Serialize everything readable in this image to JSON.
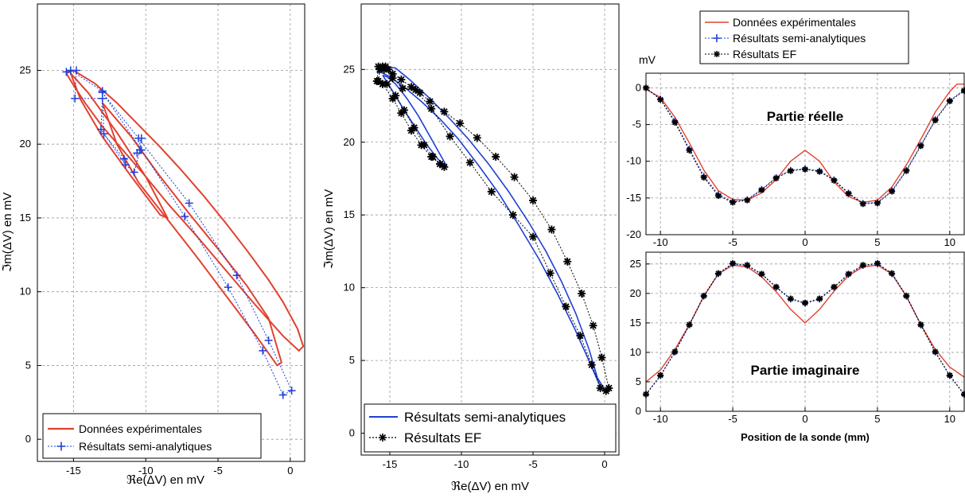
{
  "colors": {
    "experimental": "#e2412f",
    "semi_analytic": "#1f3fd6",
    "ef": "#000000",
    "grid": "#9a9a9a"
  },
  "chart_data": [
    {
      "type": "line",
      "xlabel": "ℜe(ΔV) en mV",
      "ylabel": "ℑm(ΔV) en mV",
      "xlim": [
        -17.5,
        1
      ],
      "ylim": [
        -1.5,
        29.5
      ],
      "xticks": [
        -15,
        -10,
        -5,
        0
      ],
      "yticks": [
        0,
        5,
        10,
        15,
        20,
        25
      ],
      "grid": true,
      "legend_position": "bottom-left",
      "series": [
        {
          "name": "Données expérimentales",
          "style": "solid",
          "x": [
            -15.5,
            -15.0,
            -13.5,
            -12.0,
            -10.5,
            -9.0,
            -7.5,
            -6.0,
            -4.5,
            -3.0,
            -1.5,
            -0.5,
            0.5,
            0.9,
            0.6,
            -0.5,
            -2.5,
            -4.5,
            -6.5,
            -8.5,
            -10.0,
            -11.5,
            -13.0,
            -14.2,
            -15.0,
            -15.5
          ],
          "y": [
            24.8,
            25.0,
            24.1,
            22.8,
            21.3,
            19.8,
            18.2,
            16.5,
            14.7,
            12.8,
            10.8,
            9.3,
            7.5,
            6.3,
            6.0,
            7.0,
            9.2,
            11.5,
            13.8,
            16.0,
            17.8,
            19.5,
            21.2,
            22.8,
            24.0,
            24.8
          ]
        },
        {
          "name": "Données expérimentales",
          "style": "solid",
          "x": [
            -15.2,
            -14.0,
            -12.0,
            -10.0,
            -8.5,
            -9.0,
            -11.0,
            -13.0,
            -14.5,
            -15.2
          ],
          "y": [
            24.8,
            23.5,
            20.8,
            17.8,
            15.0,
            15.2,
            17.8,
            20.5,
            23.0,
            24.8
          ]
        },
        {
          "name": "Données expérimentales",
          "style": "solid",
          "x": [
            -13.0,
            -11.0,
            -9.0,
            -7.0,
            -5.0,
            -3.0,
            -1.5,
            -0.6,
            -0.9,
            -2.5,
            -4.5,
            -6.5,
            -8.5,
            -10.5,
            -12.0,
            -13.0
          ],
          "y": [
            22.8,
            20.5,
            17.8,
            15.3,
            12.9,
            10.4,
            8.2,
            5.2,
            5.0,
            7.2,
            9.8,
            12.4,
            14.9,
            17.4,
            20.0,
            22.8
          ]
        },
        {
          "name": "Résultats semi-analytiques",
          "style": "dotted-plus",
          "x": [
            -15.5,
            -15.2,
            -14.8,
            -14.9,
            -13.0,
            -13.1,
            -11.4,
            -10.8,
            -10.4,
            -10.3,
            -10.6,
            -11.5,
            -12.9,
            -13.0,
            -15.2
          ],
          "y": [
            24.9,
            25.0,
            25.0,
            23.1,
            23.1,
            21.0,
            18.6,
            18.1,
            19.6,
            20.4,
            19.4,
            19.0,
            20.7,
            23.6,
            25.0
          ]
        },
        {
          "name": "Résultats semi-analytiques",
          "style": "dotted-plus",
          "x": [
            -13.0,
            -10.3,
            -7.3,
            -4.3,
            -1.9,
            -0.5,
            0.1,
            -1.5,
            -3.7,
            -7.0,
            -10.5,
            -13.0
          ],
          "y": [
            23.5,
            19.6,
            15.1,
            10.3,
            6.0,
            3.0,
            3.3,
            6.7,
            11.1,
            16.0,
            20.4,
            23.5
          ]
        }
      ]
    },
    {
      "type": "line",
      "xlabel": "ℜe(ΔV) en mV",
      "ylabel": "ℑm(ΔV) en mV",
      "xlim": [
        -17,
        1
      ],
      "ylim": [
        -1.5,
        29.5
      ],
      "xticks": [
        -15,
        -10,
        -5,
        0
      ],
      "yticks": [
        0,
        5,
        10,
        15,
        20,
        25
      ],
      "grid": true,
      "legend_position": "bottom-left",
      "series": [
        {
          "name": "Résultats semi-analytiques",
          "style": "solid",
          "x": [
            -15.9,
            -15.3,
            -14.6,
            -13.5,
            -12.2,
            -10.8,
            -9.5,
            -8.1,
            -6.7,
            -5.3,
            -4.1,
            -3.0,
            -2.0,
            -1.1,
            -0.5,
            0.0,
            -0.3,
            -1.1,
            -2.1,
            -3.3,
            -4.6,
            -6.0,
            -7.4,
            -8.8,
            -10.2,
            -11.5,
            -12.8,
            -14.0,
            -15.0,
            -15.6,
            -15.9
          ],
          "y": [
            24.8,
            25.2,
            25.1,
            24.2,
            23.0,
            21.6,
            20.2,
            18.5,
            16.6,
            14.5,
            12.5,
            10.4,
            8.2,
            5.8,
            3.8,
            3.0,
            3.2,
            5.0,
            7.2,
            9.6,
            12.0,
            14.3,
            16.5,
            18.4,
            20.2,
            21.6,
            22.8,
            23.8,
            24.5,
            24.8,
            24.8
          ]
        },
        {
          "name": "Résultats semi-analytiques",
          "style": "solid",
          "x": [
            -15.5,
            -14.8,
            -14.0,
            -13.2,
            -12.4,
            -11.6,
            -11.0,
            -11.4,
            -12.2,
            -13.0,
            -13.8,
            -14.6,
            -15.2,
            -15.5
          ],
          "y": [
            24.6,
            23.5,
            22.2,
            21.0,
            19.8,
            18.8,
            18.3,
            19.0,
            20.4,
            21.8,
            23.0,
            24.0,
            24.5,
            24.6
          ]
        },
        {
          "name": "Résultats EF",
          "style": "dotted-star",
          "x": [
            -15.8,
            -15.7,
            -15.5,
            -15.3,
            -15.1,
            -14.8,
            -14.1,
            -13.2,
            -12.1,
            -10.8,
            -9.4,
            -7.9,
            -6.4,
            -5.0,
            -3.8,
            -2.7,
            -1.7,
            -0.9,
            -0.3,
            0.1,
            0.3,
            -0.2,
            -0.8,
            -1.6,
            -2.6,
            -3.7,
            -5.0,
            -6.3,
            -7.6,
            -8.9,
            -10.1,
            -11.2,
            -12.2,
            -12.9,
            -13.5,
            -14.2,
            -14.8,
            -15.4,
            -15.8,
            -15.9
          ],
          "y": [
            24.2,
            25.0,
            25.2,
            25.2,
            25.0,
            24.4,
            23.7,
            23.6,
            22.3,
            20.4,
            18.6,
            16.6,
            15.0,
            13.5,
            11.0,
            8.7,
            6.7,
            4.7,
            3.1,
            2.9,
            3.1,
            5.2,
            7.4,
            9.6,
            11.8,
            14.0,
            16.0,
            17.6,
            19.0,
            20.3,
            21.3,
            22.1,
            22.8,
            23.4,
            23.8,
            24.3,
            24.7,
            25.0,
            25.2,
            24.2
          ]
        },
        {
          "name": "Résultats EF",
          "style": "dotted-star",
          "x": [
            -15.5,
            -14.8,
            -14.2,
            -13.5,
            -12.8,
            -12.1,
            -11.5,
            -11.2,
            -11.5,
            -12.0,
            -12.6,
            -13.3,
            -14.0,
            -14.6,
            -15.2,
            -15.5
          ],
          "y": [
            24.0,
            23.0,
            22.0,
            20.8,
            19.8,
            19.0,
            18.5,
            18.3,
            18.5,
            19.0,
            19.8,
            21.0,
            22.2,
            23.2,
            24.0,
            24.0
          ]
        }
      ]
    },
    {
      "type": "line",
      "annotation": "Partie réelle",
      "unit_label": "mV",
      "xlim": [
        -11,
        11
      ],
      "ylim": [
        -20,
        2
      ],
      "xticks": [
        -10,
        -5,
        0,
        5,
        10
      ],
      "yticks": [
        -20,
        -15,
        -10,
        -5,
        0
      ],
      "grid": true,
      "legend_position": "top",
      "series": [
        {
          "name": "Données expérimentales",
          "style": "solid",
          "x": [
            -11,
            -10,
            -9,
            -8,
            -7,
            -6,
            -5,
            -4,
            -3,
            -2,
            -1,
            0,
            1,
            2,
            3,
            4,
            5,
            6,
            7,
            8,
            9,
            10,
            10.5,
            11
          ],
          "y": [
            -0.2,
            -1.3,
            -4.0,
            -7.5,
            -11.2,
            -14.0,
            -15.2,
            -15.3,
            -14.3,
            -12.5,
            -10.0,
            -8.5,
            -10.0,
            -12.8,
            -14.8,
            -15.6,
            -15.3,
            -13.5,
            -10.5,
            -7.0,
            -3.3,
            -0.5,
            0.5,
            0.5
          ]
        },
        {
          "name": "Résultats semi-analytiques",
          "style": "dotted-plus",
          "x": [
            -11,
            -10,
            -9,
            -8,
            -7,
            -6,
            -5,
            -4,
            -3,
            -2,
            -1,
            0,
            1,
            2,
            3,
            4,
            5,
            6,
            7,
            8,
            9,
            10,
            11
          ],
          "y": [
            0.0,
            -1.5,
            -4.5,
            -8.3,
            -12.0,
            -14.5,
            -15.5,
            -15.2,
            -13.8,
            -12.2,
            -11.2,
            -11.0,
            -11.3,
            -12.5,
            -14.3,
            -15.7,
            -15.6,
            -14.0,
            -11.2,
            -7.8,
            -4.3,
            -1.7,
            -0.3
          ]
        },
        {
          "name": "Résultats EF",
          "style": "dotted-star",
          "x": [
            -11,
            -10,
            -9,
            -8,
            -7,
            -6,
            -5,
            -4,
            -3,
            -2,
            -1,
            0,
            1,
            2,
            3,
            4,
            5,
            6,
            7,
            8,
            9,
            10,
            11
          ],
          "y": [
            0.0,
            -1.6,
            -4.7,
            -8.5,
            -12.2,
            -14.7,
            -15.6,
            -15.3,
            -13.9,
            -12.3,
            -11.3,
            -11.1,
            -11.4,
            -12.6,
            -14.4,
            -15.8,
            -15.7,
            -14.1,
            -11.3,
            -7.9,
            -4.4,
            -1.8,
            -0.4
          ]
        }
      ]
    },
    {
      "type": "line",
      "annotation": "Partie imaginaire",
      "xlabel": "Position de la sonde (mm)",
      "xlim": [
        -11,
        11
      ],
      "ylim": [
        0,
        27
      ],
      "xticks": [
        -10,
        -5,
        0,
        5,
        10
      ],
      "yticks": [
        0,
        5,
        10,
        15,
        20,
        25
      ],
      "grid": true,
      "series": [
        {
          "name": "Données expérimentales",
          "style": "solid",
          "x": [
            -11,
            -10,
            -9,
            -8,
            -7,
            -6,
            -5,
            -4,
            -3,
            -2,
            -1,
            0,
            1,
            2,
            3,
            4,
            5,
            6,
            7,
            8,
            9,
            10,
            11
          ],
          "y": [
            5.0,
            7.0,
            10.5,
            14.7,
            19.5,
            23.3,
            24.8,
            24.5,
            22.8,
            20.3,
            17.3,
            15.0,
            17.3,
            20.4,
            23.0,
            24.5,
            24.8,
            23.3,
            19.5,
            14.7,
            10.5,
            7.5,
            5.8
          ]
        },
        {
          "name": "Résultats semi-analytiques",
          "style": "dotted-plus",
          "x": [
            -11,
            -10,
            -9,
            -8,
            -7,
            -6,
            -5,
            -4,
            -3,
            -2,
            -1,
            0,
            1,
            2,
            3,
            4,
            5,
            6,
            7,
            8,
            9,
            10,
            11
          ],
          "y": [
            2.8,
            6.0,
            10.0,
            14.6,
            19.5,
            23.3,
            25.0,
            24.7,
            23.2,
            21.0,
            19.0,
            18.3,
            19.0,
            21.0,
            23.2,
            24.7,
            25.0,
            23.3,
            19.5,
            14.6,
            10.0,
            6.0,
            2.8
          ]
        },
        {
          "name": "Résultats EF",
          "style": "dotted-star",
          "x": [
            -11,
            -10,
            -9,
            -8,
            -7,
            -6,
            -5,
            -4,
            -3,
            -2,
            -1,
            0,
            1,
            2,
            3,
            4,
            5,
            6,
            7,
            8,
            9,
            10,
            11
          ],
          "y": [
            2.9,
            6.1,
            10.1,
            14.7,
            19.6,
            23.4,
            25.1,
            24.8,
            23.3,
            21.1,
            19.1,
            18.4,
            19.1,
            21.1,
            23.3,
            24.8,
            25.1,
            23.4,
            19.6,
            14.7,
            10.1,
            6.1,
            2.9
          ]
        }
      ]
    }
  ]
}
